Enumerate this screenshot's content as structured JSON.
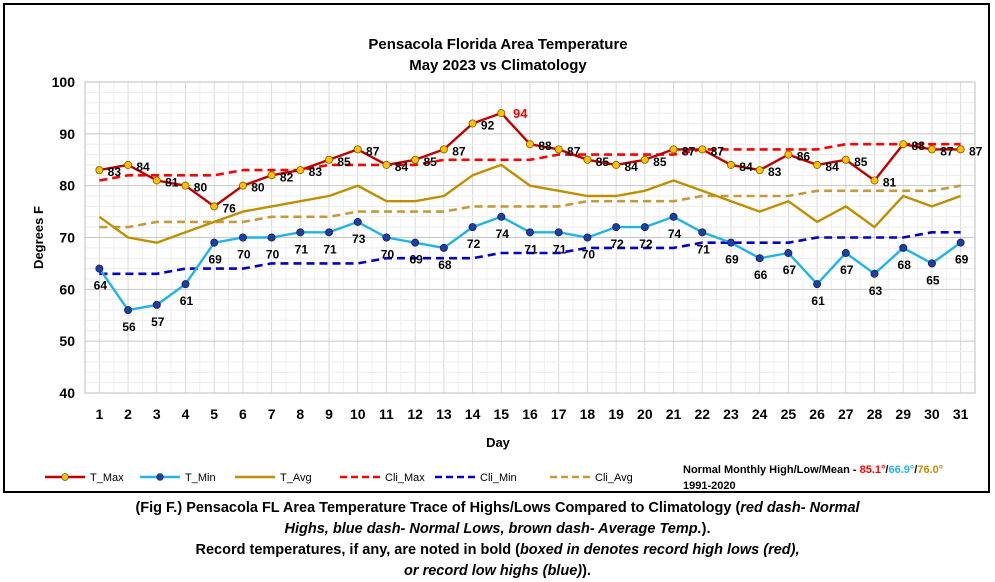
{
  "chart_data": {
    "type": "line",
    "title": "Pensacola Florida Area Temperature",
    "subtitle": "May 2023 vs Climatology",
    "xlabel": "Day",
    "ylabel": "Degrees F",
    "ylim": [
      40,
      100
    ],
    "yticks": [
      40,
      50,
      60,
      70,
      80,
      90,
      100
    ],
    "x": [
      1,
      2,
      3,
      4,
      5,
      6,
      7,
      8,
      9,
      10,
      11,
      12,
      13,
      14,
      15,
      16,
      17,
      18,
      19,
      20,
      21,
      22,
      23,
      24,
      25,
      26,
      27,
      28,
      29,
      30,
      31
    ],
    "grid": true,
    "legend_position": "bottom",
    "series": [
      {
        "name": "T_Max",
        "color": "#c00000",
        "style": "solid",
        "marker": "circle",
        "marker_color": "#ffc000",
        "labels": true,
        "values": [
          83,
          84,
          81,
          80,
          76,
          80,
          82,
          83,
          85,
          87,
          84,
          85,
          87,
          92,
          94,
          88,
          87,
          85,
          84,
          85,
          87,
          87,
          84,
          83,
          86,
          84,
          85,
          81,
          88,
          87,
          87
        ]
      },
      {
        "name": "T_Min",
        "color": "#1fb4e8",
        "style": "solid",
        "marker": "circle",
        "marker_color": "#1f3fa0",
        "labels": true,
        "values": [
          64,
          56,
          57,
          61,
          69,
          70,
          70,
          71,
          71,
          73,
          70,
          69,
          68,
          72,
          74,
          71,
          71,
          70,
          72,
          72,
          74,
          71,
          69,
          66,
          67,
          61,
          67,
          63,
          68,
          65,
          69
        ]
      },
      {
        "name": "T_Avg",
        "color": "#bf8f00",
        "style": "solid",
        "marker": "none",
        "labels": false,
        "values": [
          74,
          70,
          69,
          71,
          73,
          75,
          76,
          77,
          78,
          80,
          77,
          77,
          78,
          82,
          84,
          80,
          79,
          78,
          78,
          79,
          81,
          79,
          77,
          75,
          77,
          73,
          76,
          72,
          78,
          76,
          78
        ]
      },
      {
        "name": "Cli_Max",
        "color": "#ff0000",
        "style": "dash",
        "marker": "none",
        "labels": false,
        "values": [
          81,
          82,
          82,
          82,
          82,
          83,
          83,
          83,
          84,
          84,
          84,
          84,
          85,
          85,
          85,
          85,
          86,
          86,
          86,
          86,
          86,
          87,
          87,
          87,
          87,
          87,
          88,
          88,
          88,
          88,
          88
        ]
      },
      {
        "name": "Cli_Min",
        "color": "#0000cc",
        "style": "dash",
        "marker": "none",
        "labels": false,
        "values": [
          63,
          63,
          63,
          64,
          64,
          64,
          65,
          65,
          65,
          65,
          66,
          66,
          66,
          66,
          67,
          67,
          67,
          68,
          68,
          68,
          68,
          69,
          69,
          69,
          69,
          70,
          70,
          70,
          70,
          71,
          71
        ]
      },
      {
        "name": "Cli_Avg",
        "color": "#c49a3c",
        "style": "dash",
        "marker": "none",
        "labels": false,
        "values": [
          72,
          72,
          73,
          73,
          73,
          73,
          74,
          74,
          74,
          75,
          75,
          75,
          75,
          76,
          76,
          76,
          76,
          77,
          77,
          77,
          77,
          78,
          78,
          78,
          78,
          79,
          79,
          79,
          79,
          79,
          80
        ]
      }
    ],
    "annotations": [
      {
        "text": "94",
        "x": 15,
        "y": 94,
        "color": "#ff0000"
      }
    ],
    "normals_note": {
      "label": "Normal Monthly High/Low/Mean - ",
      "high": "85.1°",
      "high_color": "#ff0000",
      "sep1": "/",
      "low": "66.9°",
      "low_color": "#1fb4e8",
      "sep2": "/",
      "mean": "76.0°",
      "mean_color": "#bf8f00",
      "period": "1991-2020"
    }
  },
  "caption": {
    "line1_a": "(Fig F.) Pensacola FL Area Temperature Trace of Highs/Lows Compared to Climatology (",
    "line1_b": "red dash- Normal",
    "line2_a": "Highs, blue dash- Normal Lows, brown dash- Average Temp.",
    "line2_b": ").",
    "line3_a": "Record temperatures, if any, are noted in bold (",
    "line3_b": "boxed in denotes record high lows (red),",
    "line4_a": "or record low highs (blue)",
    "line4_b": ")."
  }
}
